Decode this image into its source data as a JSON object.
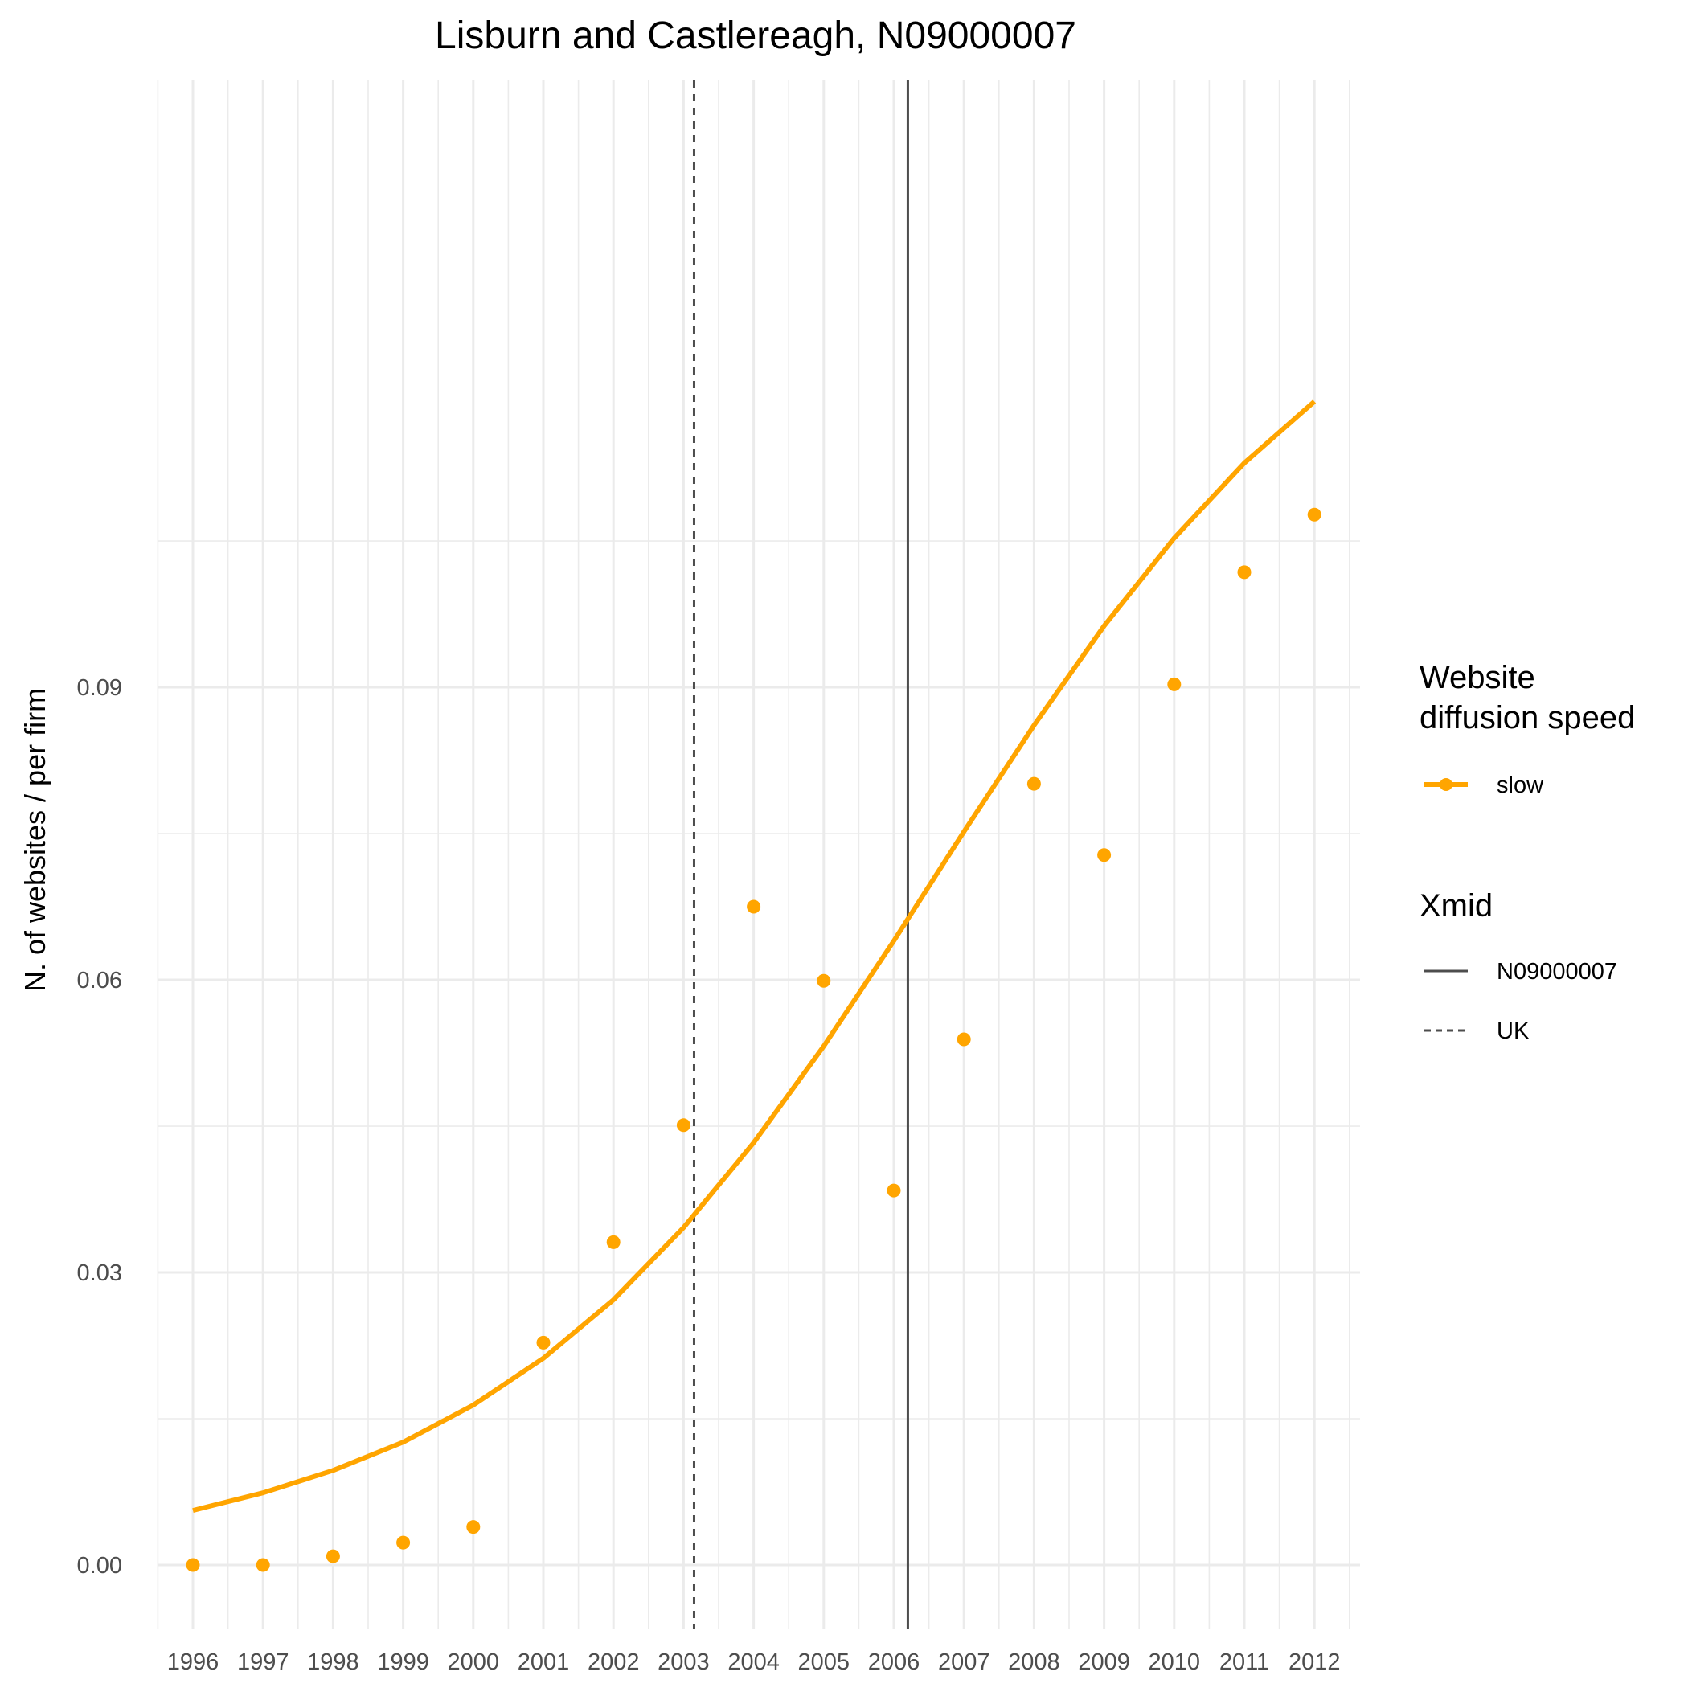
{
  "chart_data": {
    "type": "line",
    "title": "Lisburn and Castlereagh, N09000007",
    "xlabel": "",
    "ylabel": "N. of websites / per firm",
    "categories": [
      "1996",
      "1997",
      "1998",
      "1999",
      "2000",
      "2001",
      "2002",
      "2003",
      "2004",
      "2005",
      "2006",
      "2007",
      "2008",
      "2009",
      "2010",
      "2011",
      "2012"
    ],
    "ylim": [
      -0.0045,
      0.1128
    ],
    "y_ticks": [
      "0.00",
      "0.03",
      "0.06",
      "0.09"
    ],
    "y_tick_values": [
      0.0,
      0.03,
      0.06,
      0.09
    ],
    "grid": true,
    "legend_position": "right",
    "series": [
      {
        "name": "slow",
        "color": "#FFA500",
        "points": [
          0.0,
          0.0,
          0.0009,
          0.0023,
          0.0039,
          0.0228,
          0.0331,
          0.0451,
          0.0675,
          0.0599,
          0.0384,
          0.0539,
          0.0801,
          0.0728,
          0.0903,
          0.1018,
          0.1077
        ],
        "fitted": [
          0.0056,
          0.0074,
          0.0097,
          0.0126,
          0.0164,
          0.0212,
          0.0272,
          0.0346,
          0.0433,
          0.0532,
          0.064,
          0.0752,
          0.0861,
          0.0963,
          0.1053,
          0.113,
          0.1193
        ]
      }
    ],
    "vlines": [
      {
        "name": "N09000007",
        "x": 2006.2,
        "style": "solid",
        "color": "#4d4d4d"
      },
      {
        "name": "UK",
        "x": 2003.15,
        "style": "dashed",
        "color": "#4d4d4d"
      }
    ]
  },
  "legend": {
    "speed_title_line1": "Website",
    "speed_title_line2": "diffusion speed",
    "speed_item": "slow",
    "xmid_title": "Xmid",
    "xmid_items": [
      "N09000007",
      "UK"
    ]
  }
}
